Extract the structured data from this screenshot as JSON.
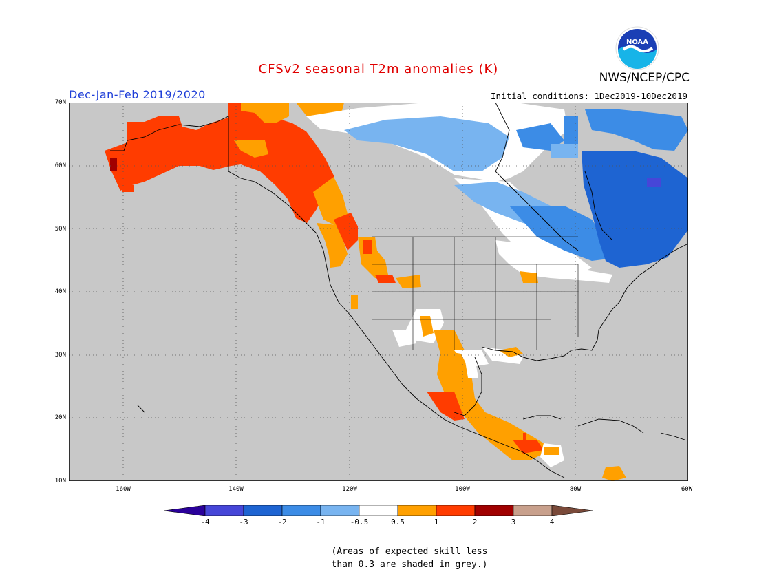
{
  "header": {
    "title": "CFSv2 seasonal T2m anomalies (K)",
    "org": "NWS/NCEP/CPC",
    "season": "Dec-Jan-Feb 2019/2020",
    "initial_conditions": "Initial conditions: 1Dec2019-10Dec2019",
    "logo_text": "NOAA"
  },
  "map": {
    "lat_labels": [
      "70N",
      "60N",
      "50N",
      "40N",
      "30N",
      "20N",
      "10N"
    ],
    "lon_labels": [
      "160W",
      "140W",
      "120W",
      "100W",
      "80W",
      "60W"
    ],
    "background_color": "#c8c8c8",
    "skill_mask_note": "grey = expected skill < 0.3"
  },
  "legend": {
    "labels": [
      "-4",
      "-3",
      "-2",
      "-1",
      "-0.5",
      "0.5",
      "1",
      "2",
      "3",
      "4"
    ],
    "colors": [
      "#2a009a",
      "#4646d8",
      "#1e64d2",
      "#3c8ce6",
      "#78b4f0",
      "#ffffff",
      "#ffa000",
      "#ff3c00",
      "#a00000",
      "#c8a08c",
      "#7a4a3a"
    ]
  },
  "note": {
    "line1": "(Areas of expected skill less",
    "line2": "than 0.3 are shaded in grey.)"
  }
}
